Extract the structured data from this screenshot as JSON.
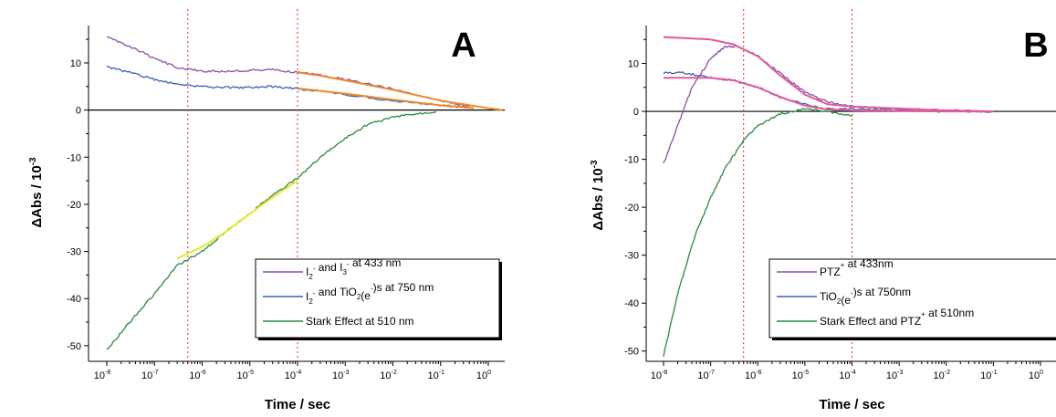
{
  "chart_data": [
    {
      "type": "line",
      "panel_label": "A",
      "xlabel": "Time / sec",
      "ylabel_main": "ΔAbs / 10",
      "ylabel_exp": "-3",
      "x_scale": "log",
      "xlim": [
        1e-08,
        1
      ],
      "ylim": [
        -51,
        16
      ],
      "y_ticks": [
        10,
        0,
        -10,
        -20,
        -30,
        -40,
        -50
      ],
      "x_ticks": [
        1e-08,
        1e-07,
        1e-06,
        1e-05,
        0.0001,
        0.001,
        0.01,
        0.1,
        1
      ],
      "x_tick_exponents": [
        "-8",
        "-7",
        "-6",
        "-5",
        "-4",
        "-3",
        "-2",
        "-1",
        "0"
      ],
      "x_tick_base": "10",
      "vertical_markers": [
        5e-07,
        0.0001
      ],
      "legend_position": "bottom-right",
      "series": [
        {
          "legend": {
            "parts": [
              [
                "I",
                ""
              ],
              [
                "2",
                "sub"
              ],
              [
                "-",
                "sup"
              ],
              [
                " and I",
                ""
              ],
              [
                "3",
                "sub"
              ],
              [
                "-",
                "sup"
              ],
              [
                " at 433 nm",
                ""
              ]
            ]
          },
          "color": "#8a4fa8",
          "x": [
            1e-08,
            3e-08,
            1e-07,
            3e-07,
            1e-06,
            3e-06,
            1e-05,
            3e-05,
            0.0001,
            0.0003,
            0.001,
            0.01,
            0.1,
            0.4
          ],
          "y": [
            15.5,
            13.5,
            11,
            9,
            8.3,
            8.2,
            8.4,
            8.6,
            8,
            7.5,
            6.5,
            4.5,
            2,
            0.8
          ]
        },
        {
          "legend": {
            "parts": [
              [
                "I",
                ""
              ],
              [
                "2",
                "sub"
              ],
              [
                "-",
                "sup"
              ],
              [
                " and TiO",
                ""
              ],
              [
                "2",
                "sub"
              ],
              [
                "(e",
                ""
              ],
              [
                "-",
                "sup"
              ],
              [
                ")s at 750 nm",
                ""
              ]
            ]
          },
          "color": "#3c5fb4",
          "x": [
            1e-08,
            3e-08,
            1e-07,
            3e-07,
            1e-06,
            3e-06,
            1e-05,
            3e-05,
            0.0001,
            0.0003,
            0.001,
            0.01,
            0.1,
            0.4
          ],
          "y": [
            9.2,
            8,
            6.5,
            5.5,
            5,
            4.8,
            4.8,
            5,
            4.5,
            4,
            3.3,
            2,
            1,
            0.5
          ]
        },
        {
          "legend": {
            "parts": [
              [
                "Stark Effect at 510 nm",
                ""
              ]
            ]
          },
          "color": "#2a8a3c",
          "x": [
            1e-08,
            3e-08,
            1e-07,
            3e-07,
            1e-06,
            3e-06,
            1e-05,
            3e-05,
            0.0001,
            0.0003,
            0.001,
            0.003,
            0.01,
            0.03,
            0.08
          ],
          "y": [
            -51,
            -45,
            -39,
            -33,
            -30,
            -26,
            -22,
            -18,
            -14.5,
            -10,
            -6,
            -3,
            -1.5,
            -0.8,
            -0.3
          ]
        },
        {
          "color": "#f08a24",
          "x": [
            0.0001,
            0.0003,
            0.001,
            0.01,
            0.1,
            1,
            2
          ],
          "y": [
            8,
            7.3,
            6.3,
            4.3,
            2,
            0.4,
            0
          ]
        },
        {
          "color": "#f08a24",
          "x": [
            0.0001,
            0.001,
            0.01,
            0.1,
            0.5
          ],
          "y": [
            4.6,
            3.5,
            2.2,
            1,
            0.4
          ]
        },
        {
          "color": "#e8e82a",
          "x": [
            3e-07,
            1e-06,
            3e-06,
            1e-05,
            3e-05,
            0.0001
          ],
          "y": [
            -31.5,
            -29,
            -26,
            -22,
            -18.5,
            -15
          ]
        }
      ]
    },
    {
      "type": "line",
      "panel_label": "B",
      "xlabel": "Time / sec",
      "ylabel_main": "ΔAbs / 10",
      "ylabel_exp": "-3",
      "x_scale": "log",
      "xlim": [
        1e-08,
        1
      ],
      "ylim": [
        -51,
        16
      ],
      "y_ticks": [
        10,
        0,
        -10,
        -20,
        -30,
        -40,
        -50
      ],
      "x_ticks": [
        1e-08,
        1e-07,
        1e-06,
        1e-05,
        0.0001,
        0.001,
        0.01,
        0.1,
        1
      ],
      "x_tick_exponents": [
        "-8",
        "-7",
        "-6",
        "-5",
        "-4",
        "-3",
        "-2",
        "-1",
        "0"
      ],
      "x_tick_base": "10",
      "vertical_markers": [
        5e-07,
        0.0001
      ],
      "legend_position": "bottom-right",
      "series": [
        {
          "legend": {
            "parts": [
              [
                "PTZ",
                ""
              ],
              [
                "+",
                "sup"
              ],
              [
                " at 433nm",
                ""
              ]
            ]
          },
          "color": "#8a4fa8",
          "x": [
            1e-08,
            2e-08,
            4e-08,
            1e-07,
            2e-07,
            4e-07,
            1e-06,
            3e-06,
            1e-05,
            3e-05,
            0.0001,
            0.001,
            0.01,
            0.1
          ],
          "y": [
            -11,
            -3,
            5,
            11,
            13.5,
            13.5,
            11.5,
            8,
            4,
            2,
            1,
            0.5,
            0.2,
            0
          ]
        },
        {
          "legend": {
            "parts": [
              [
                "TiO",
                ""
              ],
              [
                "2",
                "sub"
              ],
              [
                "(e",
                ""
              ],
              [
                "-",
                "sup"
              ],
              [
                ")s at 750nm",
                ""
              ]
            ]
          },
          "color": "#3c5fb4",
          "x": [
            1e-08,
            3e-08,
            1e-07,
            3e-07,
            1e-06,
            3e-06,
            1e-05,
            3e-05,
            0.0001,
            0.001,
            0.01,
            0.1
          ],
          "y": [
            8,
            8,
            7,
            6.5,
            5,
            3,
            1.5,
            0.5,
            0.5,
            0.3,
            0,
            0
          ]
        },
        {
          "legend": {
            "parts": [
              [
                "Stark Effect and PTZ",
                ""
              ],
              [
                "+",
                "sup"
              ],
              [
                " at 510nm",
                ""
              ]
            ]
          },
          "color": "#2a8a3c",
          "x": [
            1e-08,
            2e-08,
            5e-08,
            1e-07,
            2e-07,
            5e-07,
            1e-06,
            3e-06,
            1e-05,
            3e-05,
            0.0001
          ],
          "y": [
            -51,
            -38,
            -25,
            -18,
            -12,
            -6,
            -3,
            -0.5,
            0.5,
            0,
            -1
          ]
        },
        {
          "color": "#e05a9a",
          "x": [
            1e-08,
            1e-07,
            3e-07,
            1e-06,
            3e-06,
            1e-05,
            3e-05,
            0.0001,
            0.001,
            0.01,
            0.1
          ],
          "y": [
            15.5,
            15,
            14,
            11.5,
            7.5,
            3.5,
            1.5,
            1,
            0.6,
            0.2,
            0
          ]
        },
        {
          "color": "#e05a9a",
          "x": [
            1e-08,
            1e-07,
            3e-07,
            1e-06,
            3e-06,
            1e-05,
            3e-05,
            0.0001,
            0.001,
            0.01,
            0.1
          ],
          "y": [
            7,
            7,
            6.5,
            5,
            3,
            1.2,
            0.4,
            0.2,
            0.1,
            0,
            0
          ]
        }
      ]
    }
  ]
}
